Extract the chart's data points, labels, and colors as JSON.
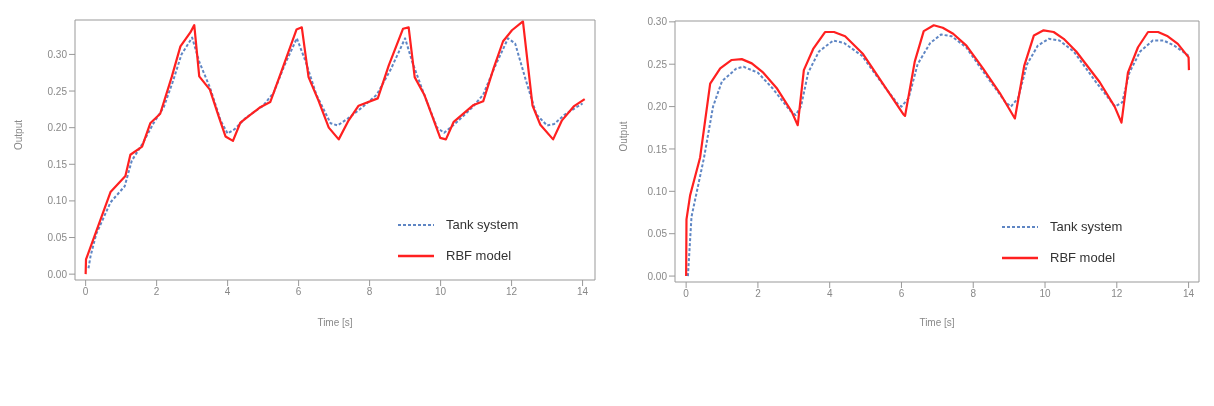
{
  "chart_data": [
    {
      "type": "line",
      "xlabel": "Time [s]",
      "ylabel": "Output",
      "xlim": [
        -0.3,
        14.35
      ],
      "ylim": [
        -0.008,
        0.347
      ],
      "xticks": [
        0,
        2,
        4,
        6,
        8,
        10,
        12,
        14
      ],
      "yticks": [
        {
          "value": 0,
          "label": "0.00"
        },
        {
          "value": 0.05,
          "label": "0.05"
        },
        {
          "value": 0.1,
          "label": "0.10"
        },
        {
          "value": 0.15,
          "label": "0.15"
        },
        {
          "value": 0.2,
          "label": "0.20"
        },
        {
          "value": 0.25,
          "label": "0.25"
        },
        {
          "value": 0.3,
          "label": "0.30"
        }
      ],
      "legend": "bottom right",
      "marker": "none",
      "series": [
        {
          "name": "Tank system",
          "color": "#5f86c4",
          "line_style": "dashed",
          "x": [
            0.08,
            0.14,
            0.3,
            0.7,
            1.1,
            1.3,
            1.6,
            1.9,
            2.2,
            2.45,
            2.7,
            3.0,
            3.2,
            3.5,
            3.8,
            4.0,
            4.2,
            4.5,
            5.0,
            5.3,
            5.6,
            5.95,
            6.2,
            6.5,
            6.9,
            7.1,
            7.4,
            7.8,
            8.2,
            8.6,
            9.0,
            9.2,
            9.5,
            9.9,
            10.1,
            10.4,
            10.9,
            11.2,
            11.5,
            11.9,
            12.1,
            12.4,
            12.7,
            13.0,
            13.2,
            13.5,
            14.0
          ],
          "values": [
            0.008,
            0.025,
            0.055,
            0.098,
            0.12,
            0.155,
            0.178,
            0.205,
            0.228,
            0.262,
            0.3,
            0.323,
            0.29,
            0.255,
            0.21,
            0.192,
            0.198,
            0.213,
            0.23,
            0.248,
            0.285,
            0.322,
            0.29,
            0.245,
            0.206,
            0.203,
            0.213,
            0.228,
            0.245,
            0.28,
            0.322,
            0.29,
            0.25,
            0.2,
            0.193,
            0.205,
            0.228,
            0.245,
            0.28,
            0.322,
            0.315,
            0.265,
            0.218,
            0.203,
            0.205,
            0.218,
            0.233
          ]
        },
        {
          "name": "RBF model",
          "color": "#ff2020",
          "line_style": "solid",
          "x": [
            0,
            0.01,
            0.7,
            1.12,
            1.26,
            1.59,
            1.82,
            2.1,
            2.43,
            2.67,
            2.95,
            3.06,
            3.2,
            3.5,
            3.75,
            3.94,
            4.15,
            4.36,
            4.92,
            5.2,
            5.48,
            5.77,
            5.94,
            6.09,
            6.28,
            6.56,
            6.85,
            7.13,
            7.41,
            7.69,
            8.23,
            8.54,
            8.94,
            9.1,
            9.27,
            9.54,
            9.99,
            10.15,
            10.37,
            10.93,
            11.2,
            11.5,
            11.76,
            12.01,
            12.32,
            12.59,
            12.81,
            13.17,
            13.42,
            13.75,
            14.06
          ],
          "values": [
            0,
            0.02,
            0.112,
            0.134,
            0.163,
            0.174,
            0.206,
            0.219,
            0.27,
            0.311,
            0.33,
            0.34,
            0.27,
            0.252,
            0.215,
            0.188,
            0.182,
            0.207,
            0.228,
            0.235,
            0.272,
            0.311,
            0.334,
            0.337,
            0.269,
            0.237,
            0.2,
            0.184,
            0.21,
            0.23,
            0.24,
            0.285,
            0.335,
            0.337,
            0.269,
            0.245,
            0.186,
            0.184,
            0.208,
            0.231,
            0.236,
            0.282,
            0.318,
            0.333,
            0.345,
            0.23,
            0.204,
            0.184,
            0.21,
            0.229,
            0.239
          ]
        }
      ]
    },
    {
      "type": "line",
      "xlabel": "Time [s]",
      "ylabel": "Output",
      "xlim": [
        -0.31,
        14.29
      ],
      "ylim": [
        -0.007,
        0.301
      ],
      "xticks": [
        0,
        2,
        4,
        6,
        8,
        10,
        12,
        14
      ],
      "yticks": [
        {
          "value": 0,
          "label": "0.00"
        },
        {
          "value": 0.05,
          "label": "0.05"
        },
        {
          "value": 0.1,
          "label": "0.10"
        },
        {
          "value": 0.15,
          "label": "0.15"
        },
        {
          "value": 0.2,
          "label": "0.20"
        },
        {
          "value": 0.25,
          "label": "0.25"
        },
        {
          "value": 0.3,
          "label": "0.30"
        }
      ],
      "legend": "bottom right",
      "marker": "none",
      "series": [
        {
          "name": "Tank system",
          "color": "#5f86c4",
          "line_style": "dashed",
          "x": [
            0.05,
            0.15,
            0.3,
            0.5,
            0.75,
            1.0,
            1.4,
            1.6,
            2.0,
            2.4,
            2.9,
            3.05,
            3.2,
            3.4,
            3.7,
            4.1,
            4.4,
            4.9,
            5.5,
            5.9,
            6.0,
            6.2,
            6.45,
            6.8,
            7.1,
            7.4,
            7.8,
            8.3,
            8.9,
            9.05,
            9.25,
            9.5,
            9.8,
            10.1,
            10.4,
            10.8,
            11.4,
            11.95,
            12.15,
            12.35,
            12.65,
            13.0,
            13.3,
            13.6,
            14.0
          ],
          "values": [
            0,
            0.07,
            0.1,
            0.14,
            0.2,
            0.23,
            0.245,
            0.247,
            0.24,
            0.222,
            0.195,
            0.19,
            0.2,
            0.24,
            0.265,
            0.278,
            0.275,
            0.26,
            0.225,
            0.203,
            0.2,
            0.21,
            0.25,
            0.275,
            0.285,
            0.283,
            0.27,
            0.24,
            0.205,
            0.2,
            0.21,
            0.25,
            0.272,
            0.28,
            0.278,
            0.265,
            0.23,
            0.2,
            0.205,
            0.24,
            0.265,
            0.278,
            0.278,
            0.272,
            0.26
          ]
        },
        {
          "name": "RBF model",
          "color": "#ff2020",
          "line_style": "solid",
          "x": [
            0,
            0.01,
            0.11,
            0.39,
            0.67,
            0.95,
            1.27,
            1.55,
            1.83,
            2.15,
            2.52,
            2.94,
            3.11,
            3.28,
            3.54,
            3.87,
            4.12,
            4.43,
            4.93,
            6.05,
            6.1,
            6.37,
            6.62,
            6.9,
            7.15,
            7.44,
            7.81,
            8.27,
            8.74,
            9.16,
            9.42,
            9.69,
            9.96,
            10.24,
            10.52,
            10.87,
            11.52,
            11.94,
            12.13,
            12.31,
            12.59,
            12.87,
            13.15,
            13.42,
            13.7,
            14.0,
            14.01
          ],
          "values": [
            0,
            0.067,
            0.095,
            0.14,
            0.227,
            0.245,
            0.255,
            0.256,
            0.251,
            0.24,
            0.222,
            0.194,
            0.178,
            0.243,
            0.268,
            0.288,
            0.288,
            0.283,
            0.262,
            0.191,
            0.189,
            0.253,
            0.289,
            0.296,
            0.293,
            0.286,
            0.272,
            0.245,
            0.216,
            0.186,
            0.248,
            0.284,
            0.29,
            0.288,
            0.28,
            0.265,
            0.229,
            0.2,
            0.181,
            0.24,
            0.27,
            0.288,
            0.288,
            0.283,
            0.274,
            0.258,
            0.243
          ]
        }
      ]
    }
  ]
}
